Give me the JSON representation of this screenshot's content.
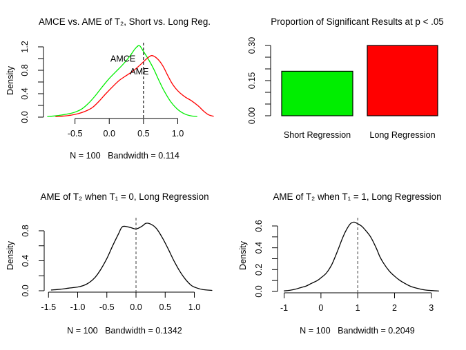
{
  "figure": {
    "background": "#ffffff",
    "accent_green": "#00EE00",
    "accent_red": "#FF0000"
  },
  "chart_data": [
    {
      "id": "amce-vs-ame-density",
      "type": "line",
      "title": "AMCE vs. AME of T₂, Short vs. Long Reg.",
      "ylabel": "Density",
      "caption": "N = 100   Bandwidth = 0.114",
      "n": 100,
      "bandwidth": 0.114,
      "xlim": [
        -0.96,
        1.59
      ],
      "ylim": [
        0,
        1.247
      ],
      "x_ticks": [
        [
          -0.5,
          "-0.5"
        ],
        [
          0,
          "0.0"
        ],
        [
          0.5,
          "0.5"
        ],
        [
          1,
          "1.0"
        ]
      ],
      "y_ticks": [
        [
          0,
          "0.0"
        ],
        [
          0.2,
          ""
        ],
        [
          0.4,
          "0.4"
        ],
        [
          0.6,
          ""
        ],
        [
          0.8,
          "0.8"
        ],
        [
          1,
          ""
        ],
        [
          1.2,
          "1.2"
        ]
      ],
      "vline": 0.5,
      "vline_color": "#000000",
      "series": [
        {
          "name": "AMCE",
          "color": "#00EE00",
          "points": [
            [
              -0.9,
              0.01
            ],
            [
              -0.8,
              0.02
            ],
            [
              -0.7,
              0.035
            ],
            [
              -0.6,
              0.055
            ],
            [
              -0.5,
              0.085
            ],
            [
              -0.4,
              0.14
            ],
            [
              -0.3,
              0.24
            ],
            [
              -0.2,
              0.37
            ],
            [
              -0.1,
              0.52
            ],
            [
              0,
              0.66
            ],
            [
              0.1,
              0.78
            ],
            [
              0.2,
              0.9
            ],
            [
              0.3,
              1.04
            ],
            [
              0.38,
              1.17
            ],
            [
              0.44,
              1.22
            ],
            [
              0.5,
              1.12
            ],
            [
              0.58,
              0.97
            ],
            [
              0.65,
              0.82
            ],
            [
              0.72,
              0.64
            ],
            [
              0.8,
              0.45
            ],
            [
              0.9,
              0.26
            ],
            [
              1,
              0.13
            ],
            [
              1.1,
              0.055
            ],
            [
              1.2,
              0.02
            ],
            [
              1.28,
              0.01
            ]
          ]
        },
        {
          "name": "AME",
          "color": "#FF0000",
          "points": [
            [
              -0.78,
              0.01
            ],
            [
              -0.65,
              0.02
            ],
            [
              -0.55,
              0.035
            ],
            [
              -0.45,
              0.06
            ],
            [
              -0.35,
              0.1
            ],
            [
              -0.25,
              0.16
            ],
            [
              -0.15,
              0.27
            ],
            [
              -0.05,
              0.4
            ],
            [
              0.05,
              0.52
            ],
            [
              0.15,
              0.63
            ],
            [
              0.25,
              0.71
            ],
            [
              0.35,
              0.79
            ],
            [
              0.45,
              0.89
            ],
            [
              0.55,
              1.0
            ],
            [
              0.62,
              1.05
            ],
            [
              0.7,
              1.0
            ],
            [
              0.78,
              0.88
            ],
            [
              0.85,
              0.72
            ],
            [
              0.92,
              0.57
            ],
            [
              1,
              0.45
            ],
            [
              1.1,
              0.35
            ],
            [
              1.2,
              0.28
            ],
            [
              1.3,
              0.19
            ],
            [
              1.38,
              0.1
            ],
            [
              1.45,
              0.04
            ],
            [
              1.52,
              0.015
            ]
          ]
        }
      ],
      "annotations": [
        {
          "text": "AMCE",
          "color": "#00EE00",
          "x": 0.2,
          "y": 1.0
        },
        {
          "text": "AME",
          "color": "#FF0000",
          "x": 0.44,
          "y": 0.78
        }
      ]
    },
    {
      "id": "significant-results-bar",
      "type": "bar",
      "title": "Proportion of Significant Results at p < .05",
      "categories": [
        "Short Regression",
        "Long Regression"
      ],
      "values": [
        0.19,
        0.3
      ],
      "bar_colors": [
        "#00EE00",
        "#FF0000"
      ],
      "ylim": [
        0,
        0.3
      ],
      "y_ticks": [
        [
          0,
          "0.00"
        ],
        [
          0.05,
          ""
        ],
        [
          0.1,
          ""
        ],
        [
          0.15,
          "0.15"
        ],
        [
          0.2,
          ""
        ],
        [
          0.25,
          ""
        ],
        [
          0.3,
          "0.30"
        ]
      ]
    },
    {
      "id": "ame-t1-0-density",
      "type": "line",
      "title": "AME of T₂ when T₁ = 0, Long Regression",
      "ylabel": "Density",
      "caption": "N = 100   Bandwidth = 0.1342",
      "n": 100,
      "bandwidth": 0.1342,
      "xlim": [
        -1.574,
        1.408
      ],
      "ylim": [
        0,
        0.956
      ],
      "x_ticks": [
        [
          -1.5,
          "-1.5"
        ],
        [
          -1,
          "-1.0"
        ],
        [
          -0.5,
          "-0.5"
        ],
        [
          0,
          "0.0"
        ],
        [
          0.5,
          "0.5"
        ],
        [
          1,
          "1.0"
        ]
      ],
      "y_ticks": [
        [
          0,
          "0.0"
        ],
        [
          0.2,
          ""
        ],
        [
          0.4,
          "0.4"
        ],
        [
          0.6,
          ""
        ],
        [
          0.8,
          "0.8"
        ]
      ],
      "vline": 0,
      "vline_color": "#4d4d4d",
      "series": [
        {
          "name": "AME T1=0",
          "color": "#000000",
          "points": [
            [
              -1.45,
              0.01
            ],
            [
              -1.3,
              0.02
            ],
            [
              -1.15,
              0.035
            ],
            [
              -1,
              0.05
            ],
            [
              -0.9,
              0.07
            ],
            [
              -0.8,
              0.11
            ],
            [
              -0.7,
              0.18
            ],
            [
              -0.6,
              0.29
            ],
            [
              -0.5,
              0.43
            ],
            [
              -0.4,
              0.6
            ],
            [
              -0.3,
              0.76
            ],
            [
              -0.25,
              0.84
            ],
            [
              -0.2,
              0.86
            ],
            [
              -0.1,
              0.845
            ],
            [
              0,
              0.825
            ],
            [
              0.1,
              0.86
            ],
            [
              0.17,
              0.9
            ],
            [
              0.25,
              0.89
            ],
            [
              0.35,
              0.83
            ],
            [
              0.45,
              0.71
            ],
            [
              0.55,
              0.56
            ],
            [
              0.65,
              0.4
            ],
            [
              0.75,
              0.26
            ],
            [
              0.85,
              0.15
            ],
            [
              0.95,
              0.07
            ],
            [
              1.05,
              0.035
            ],
            [
              1.15,
              0.015
            ],
            [
              1.3,
              0.005
            ]
          ]
        }
      ],
      "annotations": []
    },
    {
      "id": "ame-t1-1-density",
      "type": "line",
      "title": "AME of T₂ when T₁ = 1, Long Regression",
      "ylabel": "Density",
      "caption": "N = 100   Bandwidth = 0.2049",
      "n": 100,
      "bandwidth": 0.2049,
      "xlim": [
        -1.18,
        3.53
      ],
      "ylim": [
        0,
        0.663
      ],
      "x_ticks": [
        [
          -1,
          "-1"
        ],
        [
          0,
          "0"
        ],
        [
          1,
          "1"
        ],
        [
          2,
          "2"
        ],
        [
          3,
          "3"
        ]
      ],
      "y_ticks": [
        [
          0,
          "0.0"
        ],
        [
          0.1,
          ""
        ],
        [
          0.2,
          "0.2"
        ],
        [
          0.3,
          ""
        ],
        [
          0.4,
          "0.4"
        ],
        [
          0.5,
          ""
        ],
        [
          0.6,
          "0.6"
        ]
      ],
      "vline": 1,
      "vline_color": "#4d4d4d",
      "series": [
        {
          "name": "AME T1=1",
          "color": "#000000",
          "points": [
            [
              -1,
              0.005
            ],
            [
              -0.85,
              0.01
            ],
            [
              -0.7,
              0.02
            ],
            [
              -0.55,
              0.035
            ],
            [
              -0.4,
              0.05
            ],
            [
              -0.25,
              0.075
            ],
            [
              -0.1,
              0.1
            ],
            [
              0,
              0.125
            ],
            [
              0.15,
              0.17
            ],
            [
              0.3,
              0.25
            ],
            [
              0.45,
              0.37
            ],
            [
              0.6,
              0.5
            ],
            [
              0.7,
              0.57
            ],
            [
              0.8,
              0.62
            ],
            [
              0.9,
              0.635
            ],
            [
              1,
              0.62
            ],
            [
              1.1,
              0.6
            ],
            [
              1.2,
              0.565
            ],
            [
              1.35,
              0.5
            ],
            [
              1.5,
              0.4
            ],
            [
              1.6,
              0.32
            ],
            [
              1.7,
              0.26
            ],
            [
              1.85,
              0.19
            ],
            [
              2,
              0.14
            ],
            [
              2.15,
              0.1
            ],
            [
              2.3,
              0.07
            ],
            [
              2.45,
              0.045
            ],
            [
              2.6,
              0.03
            ],
            [
              2.8,
              0.015
            ],
            [
              3,
              0.008
            ],
            [
              3.2,
              0.004
            ]
          ]
        }
      ],
      "annotations": []
    }
  ]
}
